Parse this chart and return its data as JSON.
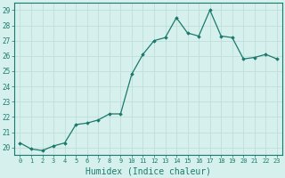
{
  "x": [
    0,
    1,
    2,
    3,
    4,
    5,
    6,
    7,
    8,
    9,
    10,
    11,
    12,
    13,
    14,
    15,
    16,
    17,
    18,
    19,
    20,
    21,
    22,
    23
  ],
  "y": [
    20.3,
    19.9,
    19.8,
    20.1,
    20.3,
    21.5,
    21.6,
    21.8,
    22.2,
    22.2,
    24.8,
    26.1,
    27.0,
    27.2,
    28.5,
    27.5,
    27.3,
    29.0,
    27.3,
    27.2,
    25.8,
    25.9,
    26.1,
    25.8
  ],
  "line_color": "#1a7a6a",
  "marker": "D",
  "marker_size": 1.8,
  "line_width": 0.9,
  "bg_color": "#d6f0ee",
  "grid_color": "#c0deda",
  "xlabel": "Humidex (Indice chaleur)",
  "xlabel_fontsize": 7,
  "tick_fontsize": 6,
  "ylim": [
    19.5,
    29.5
  ],
  "yticks": [
    20,
    21,
    22,
    23,
    24,
    25,
    26,
    27,
    28,
    29
  ],
  "xticks": [
    0,
    1,
    2,
    3,
    4,
    5,
    6,
    7,
    8,
    9,
    10,
    11,
    12,
    13,
    14,
    15,
    16,
    17,
    18,
    19,
    20,
    21,
    22,
    23
  ],
  "xlim": [
    -0.5,
    23.5
  ]
}
